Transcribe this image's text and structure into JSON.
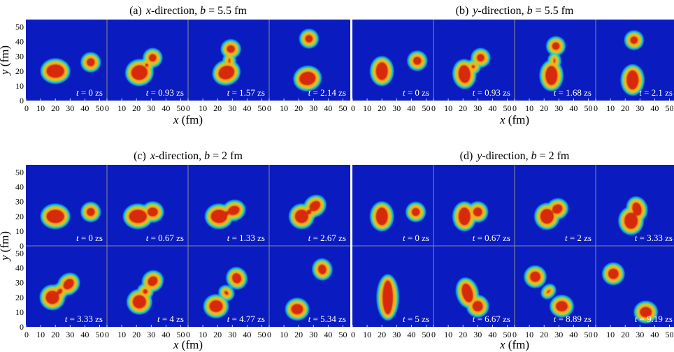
{
  "figure": {
    "panels_top": [
      {
        "id": "a",
        "caption": {
          "prefix": "(a)",
          "dir": "x",
          "rest": "-direction, ",
          "b_sym": "b",
          "b_val": " = 5.5 fm"
        },
        "rows": [
          {
            "times": [
              "0",
              "0.93",
              "1.57",
              "2.14"
            ],
            "blobs": [
              [
                [
                  20,
                  20,
                  7.5,
                  6,
                  0
                ],
                [
                  44,
                  26,
                  4.2,
                  4.2,
                  0
                ]
              ],
              [
                [
                  22,
                  19,
                  7,
                  6.5,
                  10
                ],
                [
                  31,
                  29,
                  4,
                  4,
                  0
                ],
                [
                  27,
                  24,
                  2.5,
                  2.5,
                  0
                ]
              ],
              [
                [
                  26,
                  19,
                  7,
                  6,
                  20
                ],
                [
                  29,
                  35,
                  4.2,
                  4,
                  0
                ],
                [
                  28,
                  27,
                  2,
                  3,
                  0
                ]
              ],
              [
                [
                  26,
                  15,
                  7,
                  6,
                  10
                ],
                [
                  27,
                  42,
                  4,
                  4,
                  0
                ]
              ]
            ]
          }
        ]
      },
      {
        "id": "b",
        "caption": {
          "prefix": "(b)",
          "dir": "y",
          "rest": "-direction, ",
          "b_sym": "b",
          "b_val": " = 5.5 fm"
        },
        "rows": [
          {
            "times": [
              "0",
              "0.93",
              "1.68",
              "2.1"
            ],
            "blobs": [
              [
                [
                  20,
                  20,
                  5.5,
                  7.5,
                  0
                ],
                [
                  44,
                  27,
                  4.2,
                  4.2,
                  0
                ]
              ],
              [
                [
                  21,
                  18,
                  5.5,
                  7.5,
                  5
                ],
                [
                  32,
                  29,
                  4,
                  4,
                  0
                ],
                [
                  27,
                  23,
                  2.5,
                  2.5,
                  0
                ]
              ],
              [
                [
                  25,
                  17,
                  5.5,
                  8,
                  0
                ],
                [
                  28,
                  37,
                  4,
                  4,
                  0
                ],
                [
                  27,
                  27,
                  2,
                  3,
                  0
                ]
              ],
              [
                [
                  25,
                  14,
                  5.5,
                  8,
                  0
                ],
                [
                  26,
                  41,
                  4,
                  4,
                  0
                ]
              ]
            ]
          }
        ]
      }
    ],
    "panels_bottom": [
      {
        "id": "c",
        "caption": {
          "prefix": "(c)",
          "dir": "x",
          "rest": "-direction, ",
          "b_sym": "b",
          "b_val": " = 2 fm"
        },
        "rows": [
          {
            "times": [
              "0",
              "0.67",
              "1.33",
              "2.67"
            ],
            "blobs": [
              [
                [
                  20,
                  20,
                  7.5,
                  6,
                  0
                ],
                [
                  44,
                  23,
                  4.2,
                  4.2,
                  0
                ]
              ],
              [
                [
                  21,
                  20,
                  7.5,
                  6,
                  0
                ],
                [
                  31,
                  23,
                  5,
                  4.5,
                  0
                ]
              ],
              [
                [
                  21,
                  20,
                  7,
                  6,
                  0
                ],
                [
                  31,
                  24,
                  5.5,
                  4.5,
                  20
                ],
                [
                  26,
                  22,
                  3,
                  3,
                  0
                ]
              ],
              [
                [
                  22,
                  20,
                  6,
                  6,
                  0
                ],
                [
                  31,
                  27,
                  5.5,
                  4.5,
                  40
                ],
                [
                  27,
                  23,
                  3,
                  3,
                  0
                ]
              ]
            ]
          },
          {
            "times": [
              "3.33",
              "4",
              "4.77",
              "5.34"
            ],
            "blobs": [
              [
                [
                  18,
                  20,
                  6,
                  6,
                  0
                ],
                [
                  29,
                  29,
                  5.5,
                  4.5,
                  45
                ],
                [
                  23,
                  24,
                  3.5,
                  3,
                  45
                ]
              ],
              [
                [
                  22,
                  17,
                  6,
                  6,
                  0
                ],
                [
                  31,
                  31,
                  5,
                  4.5,
                  45
                ],
                [
                  26,
                  24,
                  3,
                  3,
                  45
                ]
              ],
              [
                [
                  19,
                  14,
                  6,
                  5.5,
                  0
                ],
                [
                  33,
                  33,
                  4.5,
                  5,
                  20
                ],
                [
                  26,
                  23,
                  2.5,
                  3,
                  45
                ]
              ],
              [
                [
                  19,
                  12,
                  5.5,
                  5,
                  0
                ],
                [
                  36,
                  39,
                  4.2,
                  4.8,
                  10
                ]
              ]
            ]
          }
        ]
      },
      {
        "id": "d",
        "caption": {
          "prefix": "(d)",
          "dir": "y",
          "rest": "-direction, ",
          "b_sym": "b",
          "b_val": " = 2 fm"
        },
        "rows": [
          {
            "times": [
              "0",
              "0.67",
              "2",
              "3.33"
            ],
            "blobs": [
              [
                [
                  20,
                  20,
                  5.5,
                  7.5,
                  0
                ],
                [
                  43,
                  23,
                  4.2,
                  4.2,
                  0
                ]
              ],
              [
                [
                  21,
                  20,
                  5.5,
                  7.5,
                  0
                ],
                [
                  30,
                  23,
                  4.5,
                  4.5,
                  0
                ]
              ],
              [
                [
                  22,
                  20,
                  6,
                  6.5,
                  0
                ],
                [
                  29,
                  25,
                  5,
                  4.5,
                  30
                ]
              ],
              [
                [
                  24,
                  17,
                  6,
                  7,
                  0
                ],
                [
                  28,
                  25,
                  4.5,
                  6,
                  15
                ]
              ]
            ]
          },
          {
            "times": [
              "5",
              "6.67",
              "8.89",
              "9.19"
            ],
            "blobs": [
              [
                [
                  24,
                  20,
                  5,
                  13,
                  0
                ]
              ],
              [
                [
                  23,
                  23,
                  5,
                  8,
                  15
                ],
                [
                  30,
                  14,
                  5,
                  5,
                  0
                ]
              ],
              [
                [
                  14,
                  34,
                  5,
                  5,
                  0
                ],
                [
                  32,
                  14,
                  5.5,
                  5,
                  0
                ],
                [
                  23,
                  24,
                  2,
                  3,
                  -45
                ]
              ],
              [
                [
                  12,
                  36,
                  5,
                  5,
                  0
                ],
                [
                  34,
                  10,
                  5.5,
                  5,
                  0
                ]
              ]
            ]
          }
        ]
      }
    ],
    "t_label": "t",
    "t_sep": " = ",
    "t_unit": " zs",
    "y_label": {
      "sym": "y",
      "unit": " (fm)"
    },
    "x_label": {
      "sym": "x",
      "unit": " (fm)"
    },
    "y_ticks": [
      "0",
      "10",
      "20",
      "30",
      "40",
      "50"
    ],
    "x_ticks": [
      "0",
      "10",
      "20",
      "30",
      "40",
      "50"
    ],
    "colors": {
      "background": "#0A1BBF",
      "halo": "#19C6D8",
      "ring": "#7DDC4A",
      "edge": "#F2B21C",
      "core": "#D72A0E",
      "separator": "#ffffff"
    }
  }
}
